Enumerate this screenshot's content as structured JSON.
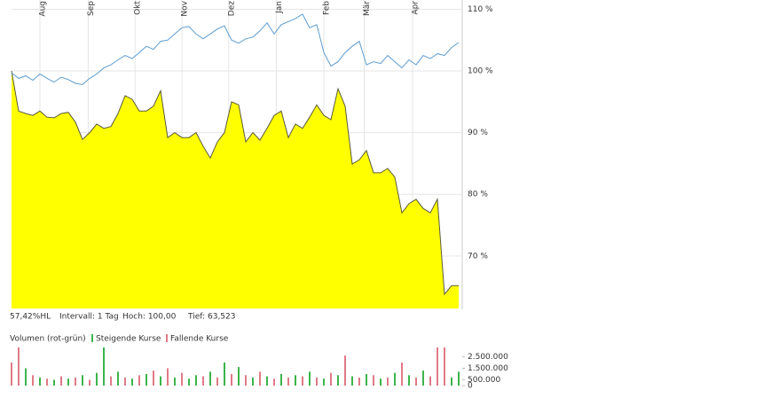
{
  "chart_data": [
    {
      "type": "line",
      "xlim": [
        0,
        63
      ],
      "xticks": [
        {
          "value": 4,
          "label": "Aug"
        },
        {
          "value": 10.8,
          "label": "Sep"
        },
        {
          "value": 17.4,
          "label": "Okt"
        },
        {
          "value": 24,
          "label": "Nov"
        },
        {
          "value": 30.6,
          "label": "Dez"
        },
        {
          "value": 37.3,
          "label": "Jan"
        },
        {
          "value": 44,
          "label": "Feb"
        },
        {
          "value": 49.7,
          "label": "Mär"
        },
        {
          "value": 56.5,
          "label": "Apr"
        }
      ],
      "ylim": [
        61.5,
        111.5
      ],
      "yticks": [
        {
          "value": 70,
          "label": "70 %"
        },
        {
          "value": 80,
          "label": "80 %"
        },
        {
          "value": 90,
          "label": "90 %"
        },
        {
          "value": 100,
          "label": "100 %"
        },
        {
          "value": 110,
          "label": "110 %"
        }
      ],
      "grid": true,
      "series": [
        {
          "color": "#5a5a3a",
          "fill": "#ffff00",
          "values": [
            100.0,
            93.5,
            93.1,
            92.8,
            93.5,
            92.5,
            92.4,
            93.1,
            93.3,
            91.7,
            88.9,
            90.0,
            91.4,
            90.7,
            91.0,
            93.1,
            96.0,
            95.4,
            93.5,
            93.5,
            94.3,
            96.8,
            89.2,
            90.0,
            89.2,
            89.2,
            90.0,
            87.8,
            85.9,
            88.5,
            90.0,
            95.0,
            94.5,
            88.5,
            90.0,
            88.8,
            90.7,
            92.8,
            93.5,
            89.2,
            91.4,
            90.7,
            92.5,
            94.5,
            92.8,
            92.1,
            97.1,
            94.3,
            84.9,
            85.6,
            87.1,
            83.5,
            83.5,
            84.2,
            82.8,
            77.0,
            78.5,
            79.2,
            77.7,
            77.0,
            79.2,
            63.8,
            65.2,
            65.2
          ]
        },
        {
          "color": "#5b9bd0",
          "values": [
            99.7,
            98.8,
            99.2,
            98.5,
            99.5,
            98.8,
            98.2,
            99.0,
            98.6,
            98.0,
            97.8,
            98.8,
            99.5,
            100.5,
            101.0,
            101.8,
            102.5,
            102.0,
            103.0,
            104.0,
            103.5,
            104.8,
            105.0,
            106.0,
            107.0,
            107.2,
            106.0,
            105.2,
            106.0,
            106.8,
            107.3,
            105.0,
            104.5,
            105.2,
            105.5,
            106.5,
            107.8,
            106.0,
            107.5,
            108.0,
            108.5,
            109.2,
            107.0,
            107.5,
            103.0,
            100.8,
            101.5,
            103.0,
            104.0,
            104.8,
            101.0,
            101.5,
            101.2,
            102.5,
            101.5,
            100.5,
            101.8,
            101.0,
            102.5,
            102.0,
            102.8,
            102.5,
            103.8,
            104.6
          ]
        }
      ],
      "stats": [
        "57,42%HL",
        "Intervall: 1 Tag",
        "Hoch: 100,00",
        "Tief: 63,523"
      ]
    },
    {
      "type": "bar",
      "title": "Volumen (rot-grün)",
      "xlim": [
        0,
        63
      ],
      "ylim": [
        0,
        3300000
      ],
      "yticks": [
        {
          "value": 0,
          "label": "0"
        },
        {
          "value": 500000,
          "label": "500.000"
        },
        {
          "value": 1500000,
          "label": "1.500.000"
        },
        {
          "value": 2500000,
          "label": "2.500.000"
        }
      ],
      "series": [
        {
          "name": "Steigende Kurse",
          "color": "#3cb44b",
          "values": [
            null,
            null,
            1500000,
            null,
            700000,
            null,
            500000,
            null,
            600000,
            null,
            900000,
            null,
            1100000,
            3300000,
            null,
            1200000,
            null,
            600000,
            null,
            1000000,
            null,
            800000,
            null,
            700000,
            null,
            600000,
            900000,
            null,
            1200000,
            null,
            2000000,
            null,
            1600000,
            null,
            700000,
            null,
            800000,
            null,
            1000000,
            null,
            900000,
            null,
            1200000,
            null,
            600000,
            null,
            900000,
            null,
            800000,
            null,
            1000000,
            null,
            600000,
            null,
            1100000,
            null,
            900000,
            null,
            1300000,
            null,
            null,
            null,
            700000,
            1200000
          ]
        },
        {
          "name": "Fallende Kurse",
          "color": "#e07a86",
          "values": [
            2000000,
            3300000,
            null,
            900000,
            null,
            600000,
            null,
            800000,
            null,
            700000,
            null,
            500000,
            null,
            null,
            800000,
            null,
            700000,
            null,
            900000,
            null,
            1300000,
            null,
            1500000,
            null,
            1100000,
            null,
            null,
            800000,
            null,
            700000,
            null,
            1000000,
            null,
            900000,
            null,
            1200000,
            null,
            600000,
            null,
            700000,
            null,
            800000,
            null,
            700000,
            null,
            1100000,
            null,
            2600000,
            null,
            700000,
            null,
            900000,
            null,
            700000,
            null,
            2000000,
            null,
            700000,
            null,
            800000,
            3300000,
            3300000,
            null,
            null
          ]
        }
      ]
    }
  ]
}
